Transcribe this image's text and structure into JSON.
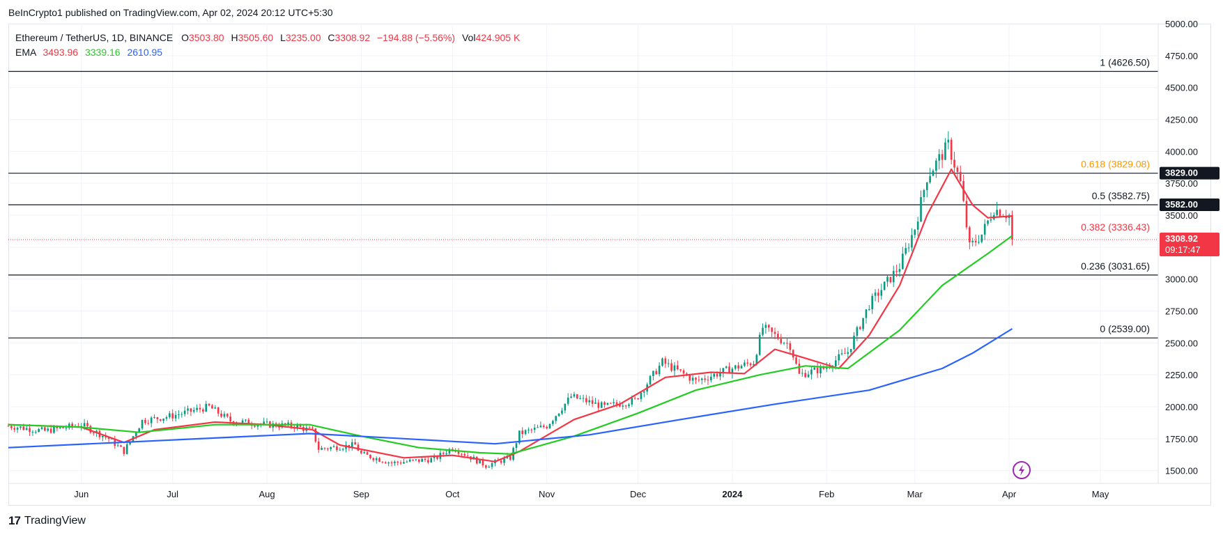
{
  "header": {
    "published": "BeInCrypto1 published on TradingView.com, Apr 02, 2024 20:12 UTC+5:30"
  },
  "legend": {
    "symbol": "Ethereum / TetherUS, 1D, BINANCE",
    "open_label": "O",
    "open": "3503.80",
    "high_label": "H",
    "high": "3505.60",
    "low_label": "L",
    "low": "3235.00",
    "close_label": "C",
    "close": "3308.92",
    "change": "−194.88 (−5.56%)",
    "vol_label": "Vol",
    "vol": "424.905 K",
    "ema_label": "EMA",
    "ema1": "3493.96",
    "ema2": "3339.16",
    "ema3": "2610.95"
  },
  "footer": {
    "brand": "TradingView"
  },
  "colors": {
    "up": "#089981",
    "down": "#f23645",
    "ema_fast": "#f23645",
    "ema_mid": "#22cc22",
    "ema_slow": "#2962ff",
    "fib_0618": "#ff9800",
    "fib_0382": "#f23645",
    "grid": "#f0f3fa"
  },
  "chart_data": {
    "type": "candlestick",
    "symbol": "ETH/USDT",
    "timeframe": "1D",
    "ylim": [
      1400,
      5000
    ],
    "y_ticks": [
      1500,
      1750,
      2000,
      2250,
      2500,
      2750,
      3000,
      3250,
      3500,
      3750,
      4000,
      4250,
      4500,
      4750,
      5000
    ],
    "y_tick_labels": [
      "1500.00",
      "1750.00",
      "2000.00",
      "2250.00",
      "2500.00",
      "2750.00",
      "3000.00",
      "3250.00",
      "3500.00",
      "3750.00",
      "4000.00",
      "4250.00",
      "4500.00",
      "4750.00",
      "5000.00"
    ],
    "x_ticks": [
      {
        "label": "Jun",
        "date": "2023-06-01"
      },
      {
        "label": "Jul",
        "date": "2023-07-01"
      },
      {
        "label": "Aug",
        "date": "2023-08-01"
      },
      {
        "label": "Sep",
        "date": "2023-09-01"
      },
      {
        "label": "Oct",
        "date": "2023-10-01"
      },
      {
        "label": "Nov",
        "date": "2023-11-01"
      },
      {
        "label": "Dec",
        "date": "2023-12-01"
      },
      {
        "label": "2024",
        "date": "2024-01-01",
        "bold": true
      },
      {
        "label": "Feb",
        "date": "2024-02-01"
      },
      {
        "label": "Mar",
        "date": "2024-03-01"
      },
      {
        "label": "Apr",
        "date": "2024-04-01"
      },
      {
        "label": "May",
        "date": "2024-05-01"
      }
    ],
    "x_range": [
      "2023-05-08",
      "2024-05-20"
    ],
    "fib_levels": [
      {
        "ratio": "1",
        "price": 4626.5,
        "label": "1 (4626.50)",
        "color": "#131722"
      },
      {
        "ratio": "0.618",
        "price": 3829.08,
        "label": "0.618 (3829.08)",
        "color": "#ff9800"
      },
      {
        "ratio": "0.5",
        "price": 3582.75,
        "label": "0.5 (3582.75)",
        "color": "#131722"
      },
      {
        "ratio": "0.382",
        "price": 3336.43,
        "label": "0.382 (3336.43)",
        "color": "#f23645"
      },
      {
        "ratio": "0.236",
        "price": 3031.65,
        "label": "0.236 (3031.65)",
        "color": "#131722"
      },
      {
        "ratio": "0",
        "price": 2539.0,
        "label": "0 (2539.00)",
        "color": "#131722"
      }
    ],
    "horizontal_lines": [
      {
        "price": 4626.5
      },
      {
        "price": 3829.0
      },
      {
        "price": 3582.0
      },
      {
        "price": 3031.65
      },
      {
        "price": 2539.0
      }
    ],
    "price_tags": [
      {
        "price": 3829.0,
        "label": "3829.00",
        "bg": "#131722",
        "fg": "#ffffff"
      },
      {
        "price": 3582.0,
        "label": "3582.00",
        "bg": "#131722",
        "fg": "#ffffff"
      },
      {
        "price": 3308.92,
        "label": "3308.92",
        "sub": "09:17:47",
        "bg": "#f23645",
        "fg": "#ffffff"
      }
    ],
    "last_price": 3308.92,
    "close_path": [
      [
        "2023-05-08",
        1850
      ],
      [
        "2023-05-20",
        1810
      ],
      [
        "2023-06-01",
        1860
      ],
      [
        "2023-06-10",
        1750
      ],
      [
        "2023-06-15",
        1650
      ],
      [
        "2023-06-21",
        1890
      ],
      [
        "2023-07-01",
        1930
      ],
      [
        "2023-07-13",
        2000
      ],
      [
        "2023-07-20",
        1890
      ],
      [
        "2023-08-01",
        1860
      ],
      [
        "2023-08-10",
        1850
      ],
      [
        "2023-08-16",
        1810
      ],
      [
        "2023-08-18",
        1670
      ],
      [
        "2023-08-30",
        1700
      ],
      [
        "2023-09-01",
        1630
      ],
      [
        "2023-09-11",
        1560
      ],
      [
        "2023-09-25",
        1590
      ],
      [
        "2023-10-01",
        1680
      ],
      [
        "2023-10-12",
        1540
      ],
      [
        "2023-10-20",
        1600
      ],
      [
        "2023-10-23",
        1790
      ],
      [
        "2023-11-01",
        1850
      ],
      [
        "2023-11-09",
        2080
      ],
      [
        "2023-11-20",
        2000
      ],
      [
        "2023-11-30",
        2050
      ],
      [
        "2023-12-09",
        2350
      ],
      [
        "2023-12-20",
        2200
      ],
      [
        "2024-01-01",
        2300
      ],
      [
        "2024-01-08",
        2350
      ],
      [
        "2024-01-11",
        2620
      ],
      [
        "2024-01-20",
        2480
      ],
      [
        "2024-01-23",
        2250
      ],
      [
        "2024-01-31",
        2300
      ],
      [
        "2024-02-08",
        2430
      ],
      [
        "2024-02-15",
        2800
      ],
      [
        "2024-02-25",
        3100
      ],
      [
        "2024-03-01",
        3400
      ],
      [
        "2024-03-05",
        3800
      ],
      [
        "2024-03-12",
        4050
      ],
      [
        "2024-03-16",
        3750
      ],
      [
        "2024-03-19",
        3250
      ],
      [
        "2024-03-23",
        3350
      ],
      [
        "2024-03-27",
        3550
      ],
      [
        "2024-04-01",
        3500
      ],
      [
        "2024-04-02",
        3308.92
      ]
    ],
    "series": [
      {
        "name": "EMA 3493.96",
        "color": "#f23645",
        "values": [
          [
            "2023-05-08",
            1860
          ],
          [
            "2023-06-01",
            1840
          ],
          [
            "2023-06-15",
            1720
          ],
          [
            "2023-06-25",
            1820
          ],
          [
            "2023-07-15",
            1880
          ],
          [
            "2023-08-01",
            1860
          ],
          [
            "2023-08-16",
            1820
          ],
          [
            "2023-08-25",
            1700
          ],
          [
            "2023-09-15",
            1600
          ],
          [
            "2023-10-01",
            1620
          ],
          [
            "2023-10-15",
            1570
          ],
          [
            "2023-10-23",
            1650
          ],
          [
            "2023-11-10",
            1900
          ],
          [
            "2023-11-25",
            2020
          ],
          [
            "2023-12-10",
            2230
          ],
          [
            "2023-12-25",
            2270
          ],
          [
            "2024-01-05",
            2260
          ],
          [
            "2024-01-15",
            2450
          ],
          [
            "2024-01-25",
            2380
          ],
          [
            "2024-02-05",
            2300
          ],
          [
            "2024-02-15",
            2560
          ],
          [
            "2024-02-25",
            2950
          ],
          [
            "2024-03-05",
            3500
          ],
          [
            "2024-03-13",
            3860
          ],
          [
            "2024-03-20",
            3580
          ],
          [
            "2024-03-25",
            3480
          ],
          [
            "2024-04-02",
            3493.96
          ]
        ]
      },
      {
        "name": "EMA 3339.16",
        "color": "#22cc22",
        "values": [
          [
            "2023-05-08",
            1860
          ],
          [
            "2023-06-01",
            1840
          ],
          [
            "2023-06-20",
            1800
          ],
          [
            "2023-07-15",
            1860
          ],
          [
            "2023-08-15",
            1860
          ],
          [
            "2023-09-01",
            1770
          ],
          [
            "2023-09-20",
            1680
          ],
          [
            "2023-10-10",
            1640
          ],
          [
            "2023-10-20",
            1630
          ],
          [
            "2023-11-10",
            1770
          ],
          [
            "2023-12-01",
            1950
          ],
          [
            "2023-12-20",
            2130
          ],
          [
            "2024-01-10",
            2250
          ],
          [
            "2024-01-25",
            2320
          ],
          [
            "2024-02-08",
            2300
          ],
          [
            "2024-02-25",
            2600
          ],
          [
            "2024-03-10",
            2950
          ],
          [
            "2024-03-25",
            3200
          ],
          [
            "2024-04-02",
            3339.16
          ]
        ]
      },
      {
        "name": "EMA 2610.95",
        "color": "#2962ff",
        "values": [
          [
            "2023-05-08",
            1680
          ],
          [
            "2023-07-01",
            1740
          ],
          [
            "2023-08-15",
            1790
          ],
          [
            "2023-09-15",
            1750
          ],
          [
            "2023-10-15",
            1710
          ],
          [
            "2023-11-15",
            1780
          ],
          [
            "2023-12-15",
            1900
          ],
          [
            "2024-01-15",
            2020
          ],
          [
            "2024-02-15",
            2130
          ],
          [
            "2024-03-10",
            2300
          ],
          [
            "2024-03-20",
            2420
          ],
          [
            "2024-04-02",
            2610.95
          ]
        ]
      }
    ]
  }
}
